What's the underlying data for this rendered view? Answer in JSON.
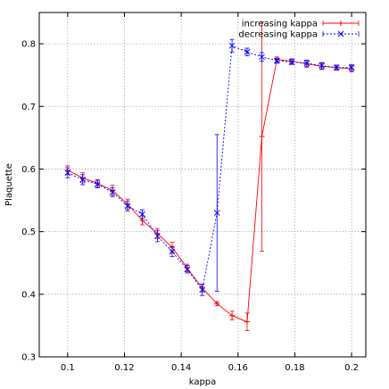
{
  "chart_data": {
    "type": "line",
    "xlabel": "kappa",
    "ylabel": "Plaquette",
    "xlim": [
      0.09,
      0.205
    ],
    "ylim": [
      0.3,
      0.85
    ],
    "x_ticks": [
      "0.1",
      "0.12",
      "0.14",
      "0.16",
      "0.18",
      "0.2"
    ],
    "y_ticks": [
      "0.3",
      "0.4",
      "0.5",
      "0.6",
      "0.7",
      "0.8"
    ],
    "grid": true,
    "legend_position": "top-right",
    "series": [
      {
        "name": "increasing kappa",
        "color": "#ff0000",
        "line_style": "solid",
        "marker": "plus",
        "points": [
          {
            "x": 0.1,
            "y": 0.598,
            "err": 0.007
          },
          {
            "x": 0.1053,
            "y": 0.586,
            "err": 0.008
          },
          {
            "x": 0.1105,
            "y": 0.577,
            "err": 0.006
          },
          {
            "x": 0.1158,
            "y": 0.566,
            "err": 0.008
          },
          {
            "x": 0.1211,
            "y": 0.544,
            "err": 0.008
          },
          {
            "x": 0.1263,
            "y": 0.518,
            "err": 0.007
          },
          {
            "x": 0.1316,
            "y": 0.497,
            "err": 0.008
          },
          {
            "x": 0.1368,
            "y": 0.475,
            "err": 0.008
          },
          {
            "x": 0.1421,
            "y": 0.442,
            "err": 0.006
          },
          {
            "x": 0.1474,
            "y": 0.41,
            "err": 0.006
          },
          {
            "x": 0.1526,
            "y": 0.385,
            "err": 0.003
          },
          {
            "x": 0.1579,
            "y": 0.366,
            "err": 0.007
          },
          {
            "x": 0.1632,
            "y": 0.356,
            "err": 0.014
          },
          {
            "x": 0.1684,
            "y": 0.652,
            "err": 0.183
          },
          {
            "x": 0.1737,
            "y": 0.775,
            "err": 0.004
          },
          {
            "x": 0.1789,
            "y": 0.772,
            "err": 0.004
          },
          {
            "x": 0.1842,
            "y": 0.768,
            "err": 0.006
          },
          {
            "x": 0.1895,
            "y": 0.764,
            "err": 0.005
          },
          {
            "x": 0.1947,
            "y": 0.762,
            "err": 0.004
          },
          {
            "x": 0.2,
            "y": 0.76,
            "err": 0.005
          }
        ]
      },
      {
        "name": "decreasing kappa",
        "color": "#0000ff",
        "line_style": "dashed",
        "marker": "cross",
        "points": [
          {
            "x": 0.1,
            "y": 0.594,
            "err": 0.008
          },
          {
            "x": 0.1053,
            "y": 0.583,
            "err": 0.008
          },
          {
            "x": 0.1105,
            "y": 0.576,
            "err": 0.006
          },
          {
            "x": 0.1158,
            "y": 0.563,
            "err": 0.007
          },
          {
            "x": 0.1211,
            "y": 0.541,
            "err": 0.008
          },
          {
            "x": 0.1263,
            "y": 0.528,
            "err": 0.007
          },
          {
            "x": 0.1316,
            "y": 0.493,
            "err": 0.009
          },
          {
            "x": 0.1368,
            "y": 0.468,
            "err": 0.008
          },
          {
            "x": 0.1421,
            "y": 0.44,
            "err": 0.006
          },
          {
            "x": 0.1474,
            "y": 0.407,
            "err": 0.009
          },
          {
            "x": 0.1526,
            "y": 0.53,
            "err": 0.125
          },
          {
            "x": 0.1579,
            "y": 0.797,
            "err": 0.01
          },
          {
            "x": 0.1632,
            "y": 0.787,
            "err": 0.006
          },
          {
            "x": 0.1684,
            "y": 0.779,
            "err": 0.007
          },
          {
            "x": 0.1737,
            "y": 0.773,
            "err": 0.004
          },
          {
            "x": 0.1789,
            "y": 0.771,
            "err": 0.004
          },
          {
            "x": 0.1842,
            "y": 0.769,
            "err": 0.005
          },
          {
            "x": 0.1895,
            "y": 0.765,
            "err": 0.005
          },
          {
            "x": 0.1947,
            "y": 0.762,
            "err": 0.004
          },
          {
            "x": 0.2,
            "y": 0.762,
            "err": 0.005
          }
        ]
      }
    ]
  }
}
